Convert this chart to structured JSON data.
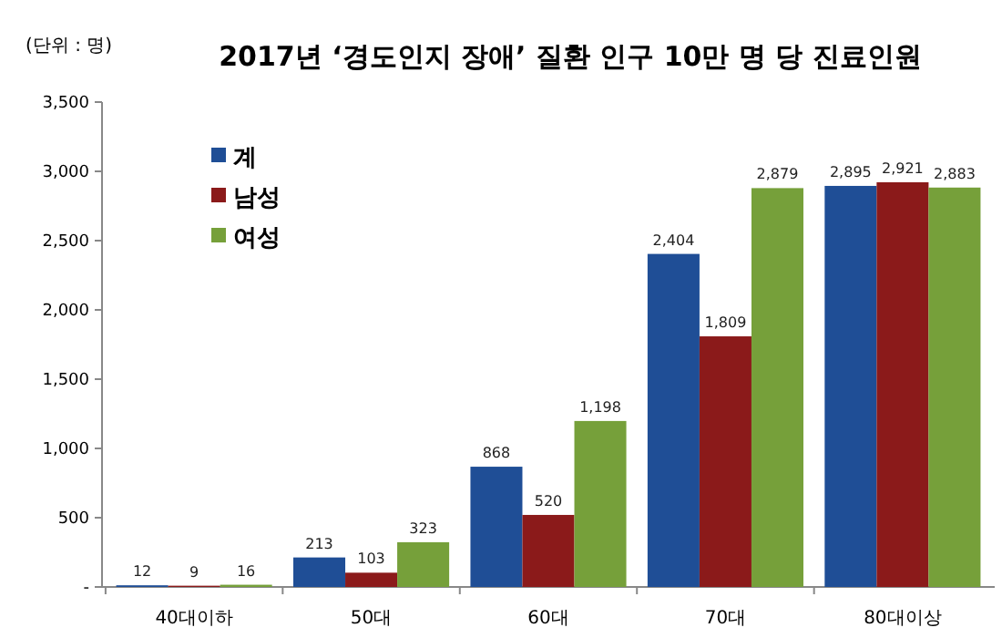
{
  "chart_data": {
    "type": "bar",
    "title": "2017년 ‘경도인지 장애’ 질환 인구 10만 명 당 진료인원",
    "ylabel": "(단위 : 명)",
    "categories": [
      "40대이하",
      "50대",
      "60대",
      "70대",
      "80대이상"
    ],
    "series": [
      {
        "name": "계",
        "color": "#1f4e96",
        "values": [
          12,
          213,
          868,
          2404,
          2895
        ],
        "value_labels": [
          "12",
          "213",
          "868",
          "2,404",
          "2,895"
        ]
      },
      {
        "name": "남성",
        "color": "#8b1a1a",
        "values": [
          9,
          103,
          520,
          1809,
          2921
        ],
        "value_labels": [
          "9",
          "103",
          "520",
          "1,809",
          "2,921"
        ]
      },
      {
        "name": "여성",
        "color": "#76a03a",
        "values": [
          16,
          323,
          1198,
          2879,
          2883
        ],
        "value_labels": [
          "16",
          "323",
          "1,198",
          "2,879",
          "2,883"
        ]
      }
    ],
    "ylim": [
      0,
      3500
    ],
    "yticks": [
      {
        "value": 0,
        "label": "-"
      },
      {
        "value": 500,
        "label": "500"
      },
      {
        "value": 1000,
        "label": "1,000"
      },
      {
        "value": 1500,
        "label": "1,500"
      },
      {
        "value": 2000,
        "label": "2,000"
      },
      {
        "value": 2500,
        "label": "2,500"
      },
      {
        "value": 3000,
        "label": "3,000"
      },
      {
        "value": 3500,
        "label": "3,500"
      }
    ],
    "legend": "top left",
    "grid": false
  }
}
